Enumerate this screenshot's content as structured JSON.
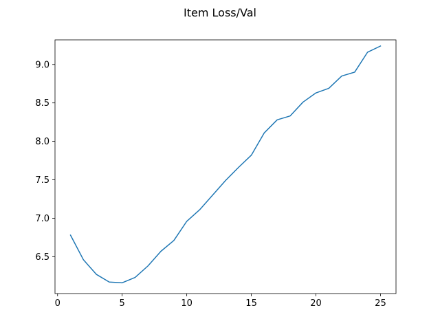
{
  "chart_data": {
    "type": "line",
    "title": "Item Loss/Val",
    "xlabel": "",
    "ylabel": "",
    "xlim": [
      -0.2,
      26.2
    ],
    "ylim": [
      6.02,
      9.32
    ],
    "xticks": [
      0,
      5,
      10,
      15,
      20,
      25
    ],
    "yticks": [
      6.5,
      7.0,
      7.5,
      8.0,
      8.5,
      9.0
    ],
    "xtick_labels": [
      "0",
      "5",
      "10",
      "15",
      "20",
      "25"
    ],
    "ytick_labels": [
      "6.5",
      "7.0",
      "7.5",
      "8.0",
      "8.5",
      "9.0"
    ],
    "grid": false,
    "legend": false,
    "series": [
      {
        "color": "#1f77b4",
        "x": [
          1,
          2,
          3,
          4,
          5,
          6,
          7,
          8,
          9,
          10,
          11,
          12,
          13,
          14,
          15,
          16,
          17,
          18,
          19,
          20,
          21,
          22,
          23,
          24,
          25
        ],
        "y": [
          6.78,
          6.46,
          6.27,
          6.17,
          6.16,
          6.23,
          6.38,
          6.57,
          6.71,
          6.96,
          7.11,
          7.3,
          7.49,
          7.66,
          7.82,
          8.11,
          8.28,
          8.33,
          8.51,
          8.63,
          8.69,
          8.85,
          8.9,
          9.16,
          9.24
        ]
      }
    ]
  }
}
